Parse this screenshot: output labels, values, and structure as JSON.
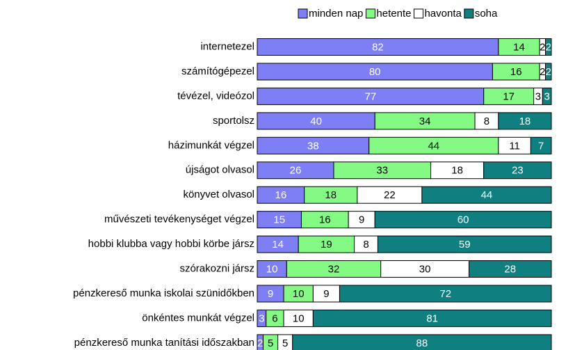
{
  "chart_data": {
    "type": "stacked_bar_horizontal",
    "categories": [
      "internetezel",
      "számítógépezel",
      "tévézel, videózol",
      "sportolsz",
      "házimunkát végzel",
      "újságot olvasol",
      "könyvet olvasol",
      "művészeti tevékenységet végzel",
      "hobbi klubba vagy hobbi körbe jársz",
      "szórakozni jársz",
      "pénzkereső munka iskolai szünidőkben",
      "önkéntes munkát végzel",
      "pénzkereső munka tanítási időszakban"
    ],
    "series": [
      {
        "name": "minden nap",
        "color": "#7f7ff5",
        "text_color": "#ffffff",
        "values": [
          82,
          80,
          77,
          40,
          38,
          26,
          16,
          15,
          14,
          10,
          9,
          3,
          2
        ]
      },
      {
        "name": "hetente",
        "color": "#84f984",
        "text_color": "#000000",
        "values": [
          14,
          16,
          17,
          34,
          44,
          33,
          18,
          16,
          19,
          32,
          10,
          6,
          5
        ]
      },
      {
        "name": "havonta",
        "color": "#ffffff",
        "text_color": "#000000",
        "values": [
          2,
          2,
          3,
          8,
          11,
          18,
          22,
          9,
          8,
          30,
          9,
          10,
          5
        ]
      },
      {
        "name": "soha",
        "color": "#0f7f7f",
        "text_color": "#ffffff",
        "values": [
          2,
          2,
          3,
          18,
          7,
          23,
          44,
          60,
          59,
          28,
          72,
          81,
          88
        ]
      }
    ],
    "legend": "top-right"
  }
}
